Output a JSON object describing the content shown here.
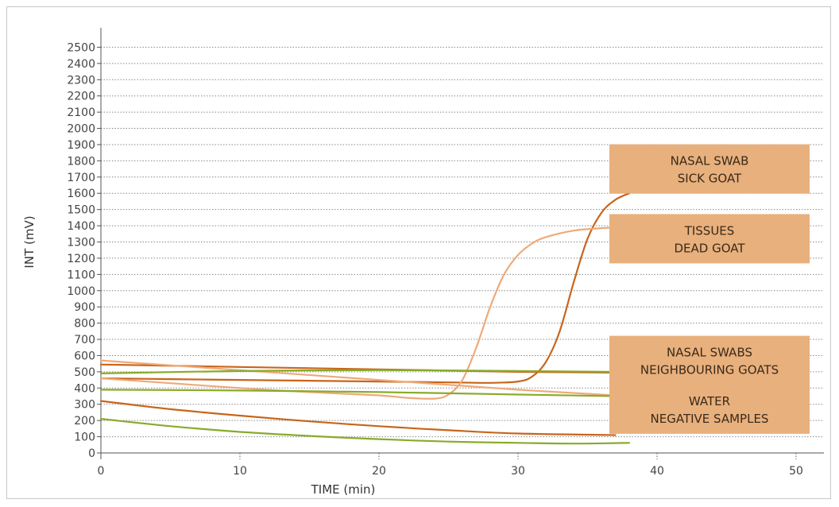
{
  "chart_data": {
    "type": "line",
    "title": "",
    "xlabel": "TIME (min)",
    "ylabel": "INT (mV)",
    "xlim": [
      0,
      52
    ],
    "ylim": [
      0,
      2600
    ],
    "x_ticks": [
      0,
      10,
      20,
      30,
      40,
      50
    ],
    "y_ticks": [
      0,
      100,
      200,
      300,
      400,
      500,
      600,
      700,
      800,
      900,
      1000,
      1100,
      1200,
      1300,
      1400,
      1500,
      1600,
      1700,
      1800,
      1900,
      2000,
      2100,
      2200,
      2300,
      2400,
      2500
    ],
    "grid": true,
    "colors": {
      "dark_orange": "#c8651b",
      "light_orange": "#eeaa7a",
      "green": "#8aaa2a",
      "callout": "#e8b07c"
    },
    "series": [
      {
        "color": "#c8651b",
        "x": [
          0,
          5,
          10,
          15,
          20,
          25,
          28,
          30,
          31,
          32,
          33,
          34,
          35,
          36,
          37,
          38
        ],
        "y": [
          460,
          455,
          450,
          445,
          440,
          435,
          432,
          440,
          470,
          560,
          750,
          1050,
          1320,
          1480,
          1560,
          1600
        ]
      },
      {
        "color": "#eeaa7a",
        "x": [
          0,
          5,
          10,
          15,
          20,
          22,
          24,
          25,
          26,
          27,
          28,
          29,
          30,
          31,
          32,
          34,
          36,
          37
        ],
        "y": [
          460,
          430,
          400,
          375,
          355,
          340,
          335,
          360,
          450,
          650,
          900,
          1100,
          1220,
          1290,
          1330,
          1370,
          1385,
          1390
        ]
      },
      {
        "color": "#c8651b",
        "x": [
          0,
          10,
          20,
          30,
          37
        ],
        "y": [
          545,
          530,
          515,
          500,
          495
        ]
      },
      {
        "color": "#eeaa7a",
        "x": [
          0,
          10,
          20,
          30,
          37
        ],
        "y": [
          570,
          510,
          450,
          390,
          355
        ]
      },
      {
        "color": "#c8651b",
        "x": [
          0,
          5,
          10,
          15,
          20,
          25,
          30,
          37
        ],
        "y": [
          320,
          270,
          230,
          195,
          165,
          140,
          120,
          110
        ]
      },
      {
        "color": "#8aaa2a",
        "x": [
          0,
          10,
          20,
          30,
          37
        ],
        "y": [
          490,
          505,
          510,
          505,
          500
        ]
      },
      {
        "color": "#8aaa2a",
        "x": [
          0,
          10,
          20,
          30,
          37
        ],
        "y": [
          390,
          385,
          375,
          360,
          350
        ]
      },
      {
        "color": "#8aaa2a",
        "x": [
          0,
          5,
          10,
          15,
          20,
          25,
          30,
          34,
          38
        ],
        "y": [
          210,
          165,
          130,
          105,
          85,
          70,
          62,
          58,
          62
        ]
      }
    ],
    "callouts": [
      {
        "lines": [
          "NASAL SWAB",
          "SICK GOAT"
        ],
        "y_center": 1750
      },
      {
        "lines": [
          "TISSUES",
          "DEAD GOAT"
        ],
        "y_center": 1320
      },
      {
        "lines": [
          "NASAL SWABS",
          "NEIGHBOURING GOATS"
        ],
        "y_center": 570
      },
      {
        "lines": [
          "WATER",
          "NEGATIVE SAMPLES"
        ],
        "y_center": 270
      }
    ]
  }
}
